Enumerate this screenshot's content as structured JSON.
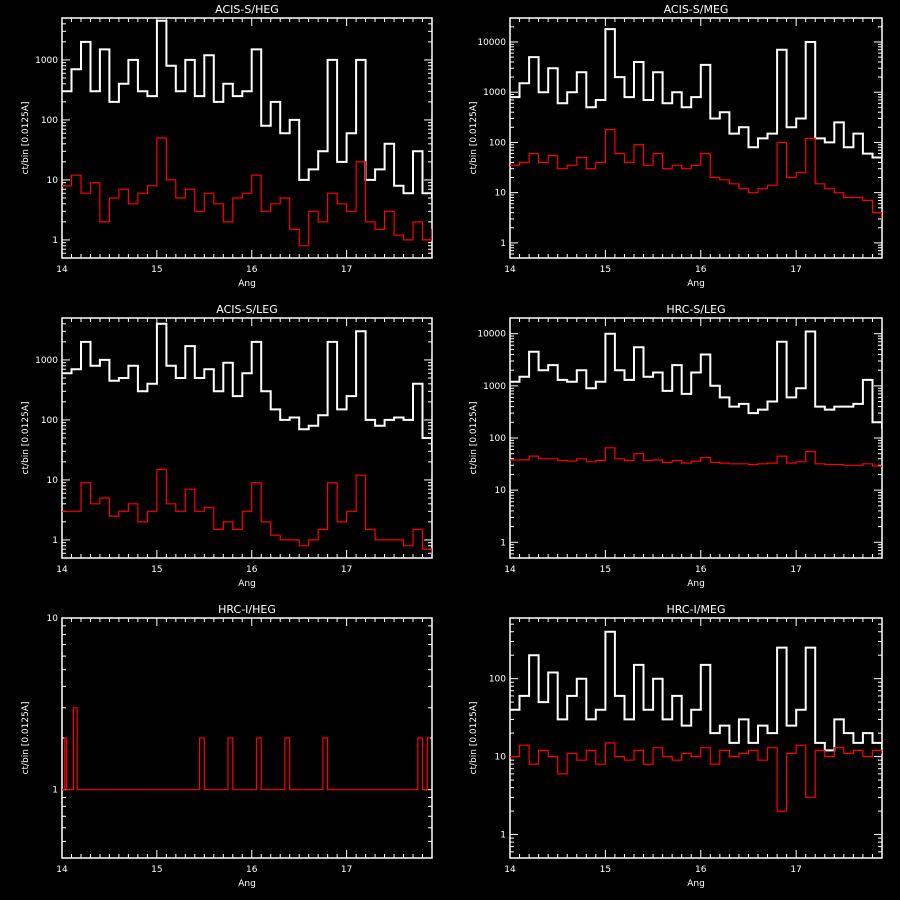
{
  "colors": {
    "background": "#000000",
    "axes": "#ffffff",
    "series_a": "#ffffff",
    "series_b": "#ff0000"
  },
  "chart_data": [
    {
      "type": "line",
      "title": "ACIS-S/HEG",
      "xlabel": "Ang",
      "ylabel": "ct/bin [0.0125A]",
      "xlim": [
        14,
        17.9
      ],
      "ylim": [
        0.5,
        5000
      ],
      "yscale": "log",
      "xticks": [
        "14",
        "15",
        "16",
        "17"
      ],
      "yticks": [
        "1",
        "10",
        "100",
        "1000"
      ],
      "series": [
        {
          "color": "#ffffff",
          "x": [
            14.0,
            14.1,
            14.2,
            14.3,
            14.4,
            14.5,
            14.6,
            14.7,
            14.8,
            14.9,
            15.0,
            15.1,
            15.2,
            15.3,
            15.4,
            15.5,
            15.6,
            15.7,
            15.8,
            15.9,
            16.0,
            16.1,
            16.2,
            16.3,
            16.4,
            16.5,
            16.6,
            16.7,
            16.8,
            16.9,
            17.0,
            17.1,
            17.2,
            17.3,
            17.4,
            17.5,
            17.6,
            17.7,
            17.8,
            17.9
          ],
          "y": [
            300,
            700,
            2000,
            300,
            1500,
            200,
            400,
            1000,
            300,
            250,
            4500,
            800,
            300,
            1000,
            250,
            1200,
            200,
            400,
            250,
            300,
            1500,
            80,
            200,
            60,
            100,
            10,
            15,
            30,
            1000,
            20,
            60,
            1000,
            10,
            15,
            40,
            8,
            6,
            30,
            6,
            5
          ]
        },
        {
          "color": "#ff0000",
          "x": [
            14.0,
            14.1,
            14.2,
            14.3,
            14.4,
            14.5,
            14.6,
            14.7,
            14.8,
            14.9,
            15.0,
            15.1,
            15.2,
            15.3,
            15.4,
            15.5,
            15.6,
            15.7,
            15.8,
            15.9,
            16.0,
            16.1,
            16.2,
            16.3,
            16.4,
            16.5,
            16.6,
            16.7,
            16.8,
            16.9,
            17.0,
            17.1,
            17.2,
            17.3,
            17.4,
            17.5,
            17.6,
            17.7,
            17.8,
            17.9
          ],
          "y": [
            8,
            12,
            6,
            9,
            2,
            5,
            7,
            4,
            6,
            8,
            50,
            10,
            5,
            7,
            3,
            6,
            4,
            2,
            5,
            6,
            12,
            3,
            4,
            5,
            1.5,
            0.8,
            3,
            2,
            6,
            4,
            3,
            20,
            2,
            1.5,
            3,
            1.2,
            1,
            2,
            1,
            1.5
          ]
        }
      ]
    },
    {
      "type": "line",
      "title": "ACIS-S/MEG",
      "xlabel": "Ang",
      "ylabel": "ct/bin [0.0125A]",
      "xlim": [
        14,
        17.9
      ],
      "ylim": [
        0.5,
        30000
      ],
      "yscale": "log",
      "xticks": [
        "14",
        "15",
        "16",
        "17"
      ],
      "yticks": [
        "1",
        "10",
        "100",
        "1000",
        "10000"
      ],
      "series": [
        {
          "color": "#ffffff",
          "x": [
            14.0,
            14.1,
            14.2,
            14.3,
            14.4,
            14.5,
            14.6,
            14.7,
            14.8,
            14.9,
            15.0,
            15.1,
            15.2,
            15.3,
            15.4,
            15.5,
            15.6,
            15.7,
            15.8,
            15.9,
            16.0,
            16.1,
            16.2,
            16.3,
            16.4,
            16.5,
            16.6,
            16.7,
            16.8,
            16.9,
            17.0,
            17.1,
            17.2,
            17.3,
            17.4,
            17.5,
            17.6,
            17.7,
            17.8,
            17.9
          ],
          "y": [
            800,
            1500,
            5000,
            1000,
            3000,
            600,
            1000,
            2500,
            500,
            700,
            18000,
            2000,
            800,
            4000,
            700,
            2500,
            600,
            1000,
            500,
            800,
            3500,
            300,
            400,
            150,
            200,
            80,
            120,
            150,
            7000,
            200,
            300,
            10000,
            120,
            100,
            250,
            80,
            150,
            60,
            50,
            40
          ]
        },
        {
          "color": "#ff0000",
          "x": [
            14.0,
            14.1,
            14.2,
            14.3,
            14.4,
            14.5,
            14.6,
            14.7,
            14.8,
            14.9,
            15.0,
            15.1,
            15.2,
            15.3,
            15.4,
            15.5,
            15.6,
            15.7,
            15.8,
            15.9,
            16.0,
            16.1,
            16.2,
            16.3,
            16.4,
            16.5,
            16.6,
            16.7,
            16.8,
            16.9,
            17.0,
            17.1,
            17.2,
            17.3,
            17.4,
            17.5,
            17.6,
            17.7,
            17.8,
            17.9
          ],
          "y": [
            35,
            40,
            60,
            40,
            55,
            30,
            35,
            50,
            30,
            40,
            180,
            60,
            40,
            90,
            35,
            60,
            30,
            35,
            30,
            35,
            60,
            20,
            18,
            15,
            12,
            10,
            12,
            14,
            100,
            20,
            25,
            120,
            15,
            12,
            10,
            8,
            8,
            7,
            4,
            3
          ]
        }
      ]
    },
    {
      "type": "line",
      "title": "ACIS-S/LEG",
      "xlabel": "Ang",
      "ylabel": "ct/bin [0.0125A]",
      "xlim": [
        14,
        17.9
      ],
      "ylim": [
        0.5,
        5000
      ],
      "yscale": "log",
      "xticks": [
        "14",
        "15",
        "16",
        "17"
      ],
      "yticks": [
        "1",
        "10",
        "100",
        "1000"
      ],
      "series": [
        {
          "color": "#ffffff",
          "x": [
            14.0,
            14.1,
            14.2,
            14.3,
            14.4,
            14.5,
            14.6,
            14.7,
            14.8,
            14.9,
            15.0,
            15.1,
            15.2,
            15.3,
            15.4,
            15.5,
            15.6,
            15.7,
            15.8,
            15.9,
            16.0,
            16.1,
            16.2,
            16.3,
            16.4,
            16.5,
            16.6,
            16.7,
            16.8,
            16.9,
            17.0,
            17.1,
            17.2,
            17.3,
            17.4,
            17.5,
            17.6,
            17.7,
            17.8,
            17.9
          ],
          "y": [
            600,
            700,
            2000,
            800,
            1000,
            450,
            500,
            800,
            300,
            400,
            4000,
            800,
            500,
            1700,
            500,
            700,
            300,
            900,
            250,
            600,
            2000,
            300,
            150,
            100,
            110,
            70,
            80,
            120,
            2000,
            150,
            250,
            3000,
            100,
            80,
            100,
            110,
            100,
            400,
            50,
            30
          ]
        },
        {
          "color": "#ff0000",
          "x": [
            14.0,
            14.1,
            14.2,
            14.3,
            14.4,
            14.5,
            14.6,
            14.7,
            14.8,
            14.9,
            15.0,
            15.1,
            15.2,
            15.3,
            15.4,
            15.5,
            15.6,
            15.7,
            15.8,
            15.9,
            16.0,
            16.1,
            16.2,
            16.3,
            16.4,
            16.5,
            16.6,
            16.7,
            16.8,
            16.9,
            17.0,
            17.1,
            17.2,
            17.3,
            17.4,
            17.5,
            17.6,
            17.7,
            17.8,
            17.9
          ],
          "y": [
            3,
            3,
            9,
            4,
            5,
            2.5,
            3,
            4,
            2,
            3,
            15,
            4,
            3,
            7,
            3,
            3.5,
            1.5,
            2,
            1.5,
            3,
            9,
            2,
            1.2,
            1,
            1,
            0.8,
            1,
            1.5,
            9,
            2,
            3,
            12,
            1.5,
            1,
            1,
            1,
            0.8,
            1.5,
            0.7,
            0.6
          ]
        }
      ]
    },
    {
      "type": "line",
      "title": "HRC-S/LEG",
      "xlabel": "Ang",
      "ylabel": "ct/bin [0.0125A]",
      "xlim": [
        14,
        17.9
      ],
      "ylim": [
        0.5,
        20000
      ],
      "yscale": "log",
      "xticks": [
        "14",
        "15",
        "16",
        "17"
      ],
      "yticks": [
        "1",
        "10",
        "100",
        "1000",
        "10000"
      ],
      "series": [
        {
          "color": "#ffffff",
          "x": [
            14.0,
            14.1,
            14.2,
            14.3,
            14.4,
            14.5,
            14.6,
            14.7,
            14.8,
            14.9,
            15.0,
            15.1,
            15.2,
            15.3,
            15.4,
            15.5,
            15.6,
            15.7,
            15.8,
            15.9,
            16.0,
            16.1,
            16.2,
            16.3,
            16.4,
            16.5,
            16.6,
            16.7,
            16.8,
            16.9,
            17.0,
            17.1,
            17.2,
            17.3,
            17.4,
            17.5,
            17.6,
            17.7,
            17.8,
            17.9
          ],
          "y": [
            1200,
            1500,
            4500,
            2000,
            2500,
            1300,
            1200,
            2000,
            900,
            1200,
            10000,
            2000,
            1300,
            5500,
            1500,
            1800,
            800,
            2500,
            700,
            1800,
            4000,
            1000,
            600,
            400,
            450,
            300,
            350,
            500,
            7000,
            600,
            900,
            11000,
            400,
            350,
            400,
            400,
            450,
            1300,
            200,
            150
          ]
        },
        {
          "color": "#ff0000",
          "x": [
            14.0,
            14.1,
            14.2,
            14.3,
            14.4,
            14.5,
            14.6,
            14.7,
            14.8,
            14.9,
            15.0,
            15.1,
            15.2,
            15.3,
            15.4,
            15.5,
            15.6,
            15.7,
            15.8,
            15.9,
            16.0,
            16.1,
            16.2,
            16.3,
            16.4,
            16.5,
            16.6,
            16.7,
            16.8,
            16.9,
            17.0,
            17.1,
            17.2,
            17.3,
            17.4,
            17.5,
            17.6,
            17.7,
            17.8,
            17.9
          ],
          "y": [
            38,
            38,
            45,
            40,
            40,
            37,
            36,
            40,
            35,
            37,
            65,
            40,
            37,
            50,
            37,
            38,
            34,
            37,
            33,
            36,
            42,
            34,
            33,
            32,
            32,
            31,
            32,
            33,
            45,
            33,
            35,
            55,
            32,
            31,
            31,
            30,
            30,
            32,
            29,
            29
          ]
        }
      ]
    },
    {
      "type": "line",
      "title": "HRC-I/HEG",
      "xlabel": "Ang",
      "ylabel": "ct/bin [0.0125A]",
      "xlim": [
        14,
        17.9
      ],
      "ylim": [
        0.4,
        10
      ],
      "yscale": "log",
      "xticks": [
        "14",
        "15",
        "16",
        "17"
      ],
      "yticks": [
        "1",
        "10"
      ],
      "series": [
        {
          "color": "#ff0000",
          "x": [
            14.0,
            14.03,
            14.05,
            14.1,
            14.12,
            14.16,
            14.2,
            14.3,
            14.35,
            14.5,
            14.55,
            14.6,
            14.7,
            14.8,
            14.85,
            15.0,
            15.1,
            15.2,
            15.3,
            15.4,
            15.45,
            15.5,
            15.6,
            15.7,
            15.75,
            15.8,
            15.9,
            16.0,
            16.05,
            16.1,
            16.2,
            16.3,
            16.35,
            16.4,
            16.5,
            16.6,
            16.7,
            16.75,
            16.8,
            16.9,
            17.0,
            17.1,
            17.2,
            17.3,
            17.4,
            17.5,
            17.6,
            17.7,
            17.75,
            17.8,
            17.85
          ],
          "y": [
            1,
            2,
            1,
            1,
            3,
            1,
            1,
            1,
            1,
            1,
            1,
            1,
            1,
            1,
            1,
            1,
            1,
            1,
            1,
            1,
            2,
            1,
            1,
            1,
            2,
            1,
            1,
            1,
            2,
            1,
            1,
            1,
            2,
            1,
            1,
            1,
            1,
            2,
            1,
            1,
            1,
            1,
            1,
            1,
            1,
            1,
            1,
            1,
            2,
            1,
            2
          ]
        }
      ]
    },
    {
      "type": "line",
      "title": "HRC-I/MEG",
      "xlabel": "Ang",
      "ylabel": "ct/bin [0.0125A]",
      "xlim": [
        14,
        17.9
      ],
      "ylim": [
        0.5,
        600
      ],
      "yscale": "log",
      "xticks": [
        "14",
        "15",
        "16",
        "17"
      ],
      "yticks": [
        "1",
        "10",
        "100"
      ],
      "series": [
        {
          "color": "#ffffff",
          "x": [
            14.0,
            14.1,
            14.2,
            14.3,
            14.4,
            14.5,
            14.6,
            14.7,
            14.8,
            14.9,
            15.0,
            15.1,
            15.2,
            15.3,
            15.4,
            15.5,
            15.6,
            15.7,
            15.8,
            15.9,
            16.0,
            16.1,
            16.2,
            16.3,
            16.4,
            16.5,
            16.6,
            16.7,
            16.8,
            16.9,
            17.0,
            17.1,
            17.2,
            17.3,
            17.4,
            17.5,
            17.6,
            17.7,
            17.8,
            17.9
          ],
          "y": [
            40,
            60,
            200,
            50,
            120,
            30,
            60,
            100,
            30,
            40,
            400,
            60,
            30,
            150,
            40,
            100,
            30,
            60,
            25,
            40,
            150,
            20,
            25,
            15,
            30,
            15,
            25,
            20,
            250,
            25,
            40,
            250,
            15,
            12,
            30,
            20,
            15,
            20,
            15,
            12
          ]
        },
        {
          "color": "#ff0000",
          "x": [
            14.0,
            14.1,
            14.2,
            14.3,
            14.4,
            14.5,
            14.6,
            14.7,
            14.8,
            14.9,
            15.0,
            15.1,
            15.2,
            15.3,
            15.4,
            15.5,
            15.6,
            15.7,
            15.8,
            15.9,
            16.0,
            16.1,
            16.2,
            16.3,
            16.4,
            16.5,
            16.6,
            16.7,
            16.8,
            16.9,
            17.0,
            17.1,
            17.2,
            17.3,
            17.4,
            17.5,
            17.6,
            17.7,
            17.8,
            17.9
          ],
          "y": [
            10,
            14,
            8,
            12,
            10,
            6,
            11,
            9,
            12,
            8,
            15,
            10,
            9,
            12,
            8,
            13,
            10,
            9,
            11,
            10,
            13,
            8,
            12,
            10,
            11,
            12,
            9,
            13,
            2,
            11,
            14,
            3,
            12,
            10,
            13,
            11,
            12,
            10,
            12,
            11
          ]
        }
      ]
    }
  ]
}
